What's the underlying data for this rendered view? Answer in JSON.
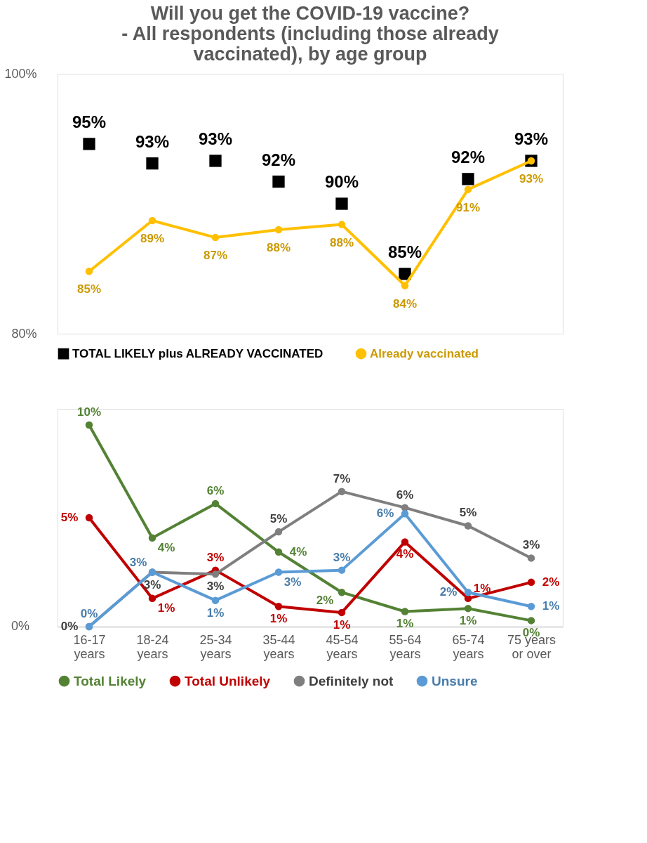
{
  "chart_data": [
    {
      "type": "line",
      "title": "Will you get the COVID-19 vaccine?\n- All respondents (including those already\nvaccinated), by age group",
      "categories": [
        null,
        null,
        null,
        null,
        null,
        null,
        null,
        null
      ],
      "series": [
        {
          "name": "TOTAL LIKELY plus ALREADY VACCINATED",
          "type": "scatter",
          "marker": "square",
          "color": "#000000",
          "values": [
            94.6,
            93.1,
            93.3,
            91.7,
            90.0,
            84.6,
            91.9,
            93.3
          ],
          "value_labels": [
            "95%",
            "93%",
            "93%",
            "92%",
            "90%",
            "85%",
            "92%",
            "93%"
          ]
        },
        {
          "name": "Already vaccinated",
          "type": "line",
          "marker": "circle",
          "color": "#ffc000",
          "values": [
            84.8,
            88.7,
            87.4,
            88.0,
            88.4,
            83.7,
            91.1,
            93.3
          ],
          "value_labels": [
            "85%",
            "89%",
            "87%",
            "88%",
            "88%",
            "84%",
            "91%",
            "93%"
          ]
        }
      ],
      "ylim": [
        80,
        100
      ],
      "yticks": [
        {
          "value": 80,
          "label": "80%"
        },
        {
          "value": 100,
          "label": "100%"
        }
      ],
      "tick_labels": "y",
      "legend": "bottom",
      "grid": false
    },
    {
      "type": "line",
      "categories": [
        "16-17 years",
        "18-24 years",
        "25-34 years",
        "35-44 years",
        "45-54 years",
        "55-64 years",
        "65-74 years",
        "75 years or over"
      ],
      "series": [
        {
          "name": "Total Likely",
          "color": "#548235",
          "values": [
            10.0,
            4.4,
            6.1,
            3.7,
            1.7,
            0.75,
            0.9,
            0.3
          ],
          "value_labels": [
            "10%",
            "4%",
            "6%",
            "4%",
            "2%",
            "1%",
            "1%",
            "0%"
          ]
        },
        {
          "name": "Total Unlikely",
          "color": "#c00000",
          "values": [
            5.4,
            1.4,
            2.8,
            1.0,
            0.7,
            4.2,
            1.4,
            2.2
          ],
          "value_labels": [
            "5%",
            "1%",
            "3%",
            "1%",
            "1%",
            "4%",
            "1%",
            "2%"
          ]
        },
        {
          "name": "Definitely not",
          "color": "#7f7f7f",
          "values": [
            0.0,
            2.7,
            2.6,
            4.7,
            6.7,
            5.9,
            5.0,
            3.4
          ],
          "value_labels": [
            "0%",
            "3%",
            "3%",
            "5%",
            "7%",
            "6%",
            "5%",
            "3%"
          ]
        },
        {
          "name": "Unsure",
          "color": "#5b9bd5",
          "values": [
            0.0,
            2.7,
            1.3,
            2.7,
            2.8,
            5.6,
            1.7,
            1.0
          ],
          "value_labels": [
            "0%",
            "3%",
            "1%",
            "3%",
            "3%",
            "6%",
            "2%",
            "1%"
          ]
        }
      ],
      "annotations": [
        "0%"
      ],
      "marker": "circle",
      "legend": "bottom",
      "grid": false
    }
  ]
}
